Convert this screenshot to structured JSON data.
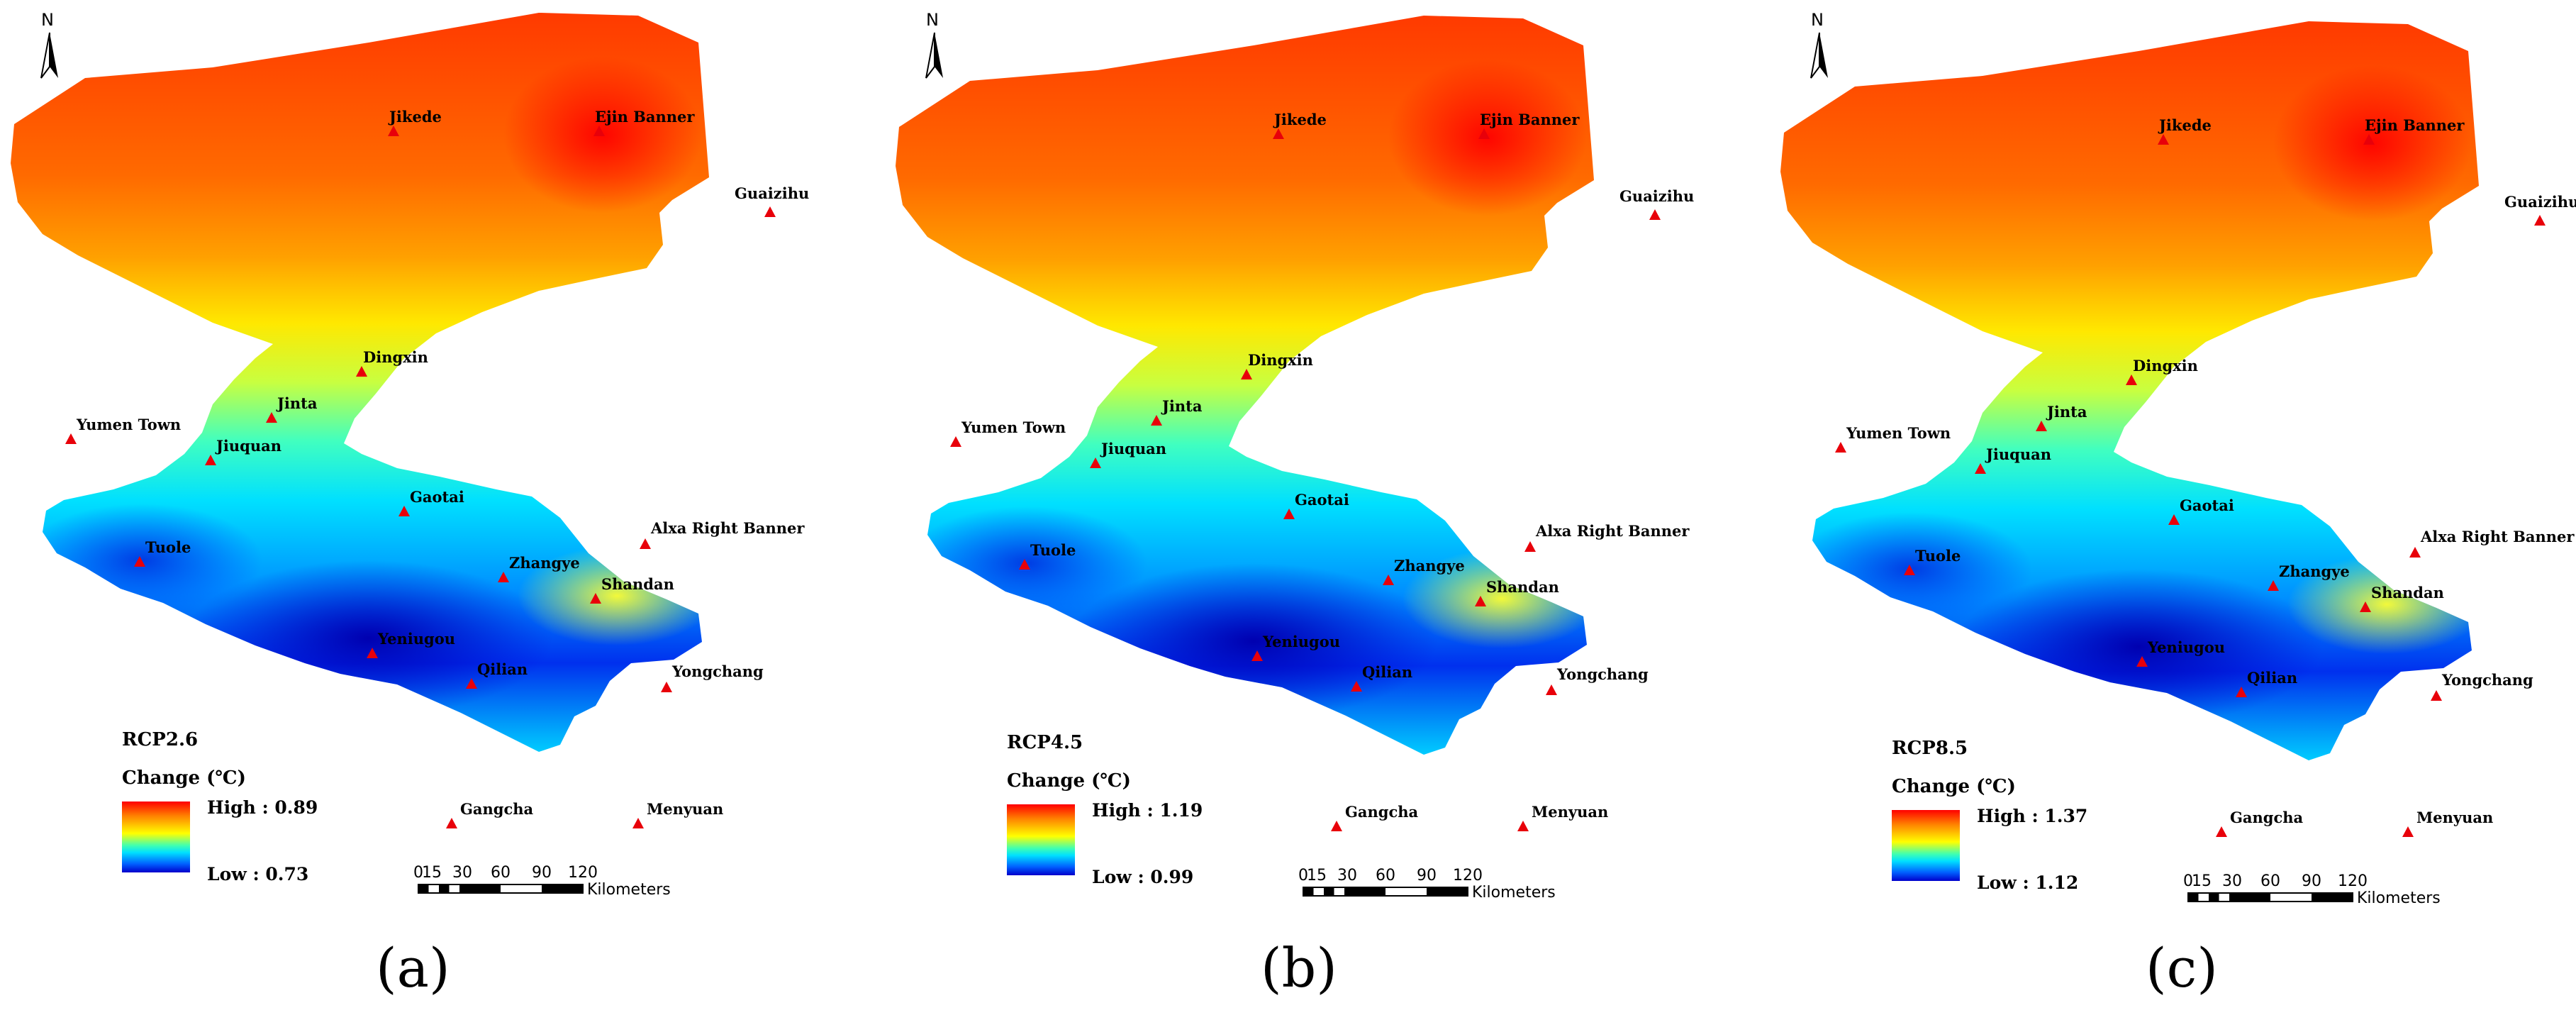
{
  "north_label": "N",
  "colors": {
    "high": "#ff0000",
    "mid": "#ffff00",
    "cyan": "#00e8ff",
    "low": "#0000cc",
    "marker": "#e8000a"
  },
  "legend_title": "Change (℃)",
  "scale": {
    "ticks": [
      "0",
      "15",
      "30",
      "60",
      "90",
      "120"
    ],
    "unit": "Kilometers"
  },
  "stations": [
    {
      "name": "Jikede"
    },
    {
      "name": "Ejin Banner"
    },
    {
      "name": "Guaizihu"
    },
    {
      "name": "Dingxin"
    },
    {
      "name": "Jinta"
    },
    {
      "name": "Yumen Town"
    },
    {
      "name": "Jiuquan"
    },
    {
      "name": "Gaotai"
    },
    {
      "name": "Alxa Right Banner"
    },
    {
      "name": "Tuole"
    },
    {
      "name": "Zhangye"
    },
    {
      "name": "Shandan"
    },
    {
      "name": "Yeniugou"
    },
    {
      "name": "Qilian"
    },
    {
      "name": "Yongchang"
    },
    {
      "name": "Gangcha"
    },
    {
      "name": "Menyuan"
    }
  ],
  "panels": [
    {
      "scenario": "RCP2.6",
      "high": "High : 0.89",
      "low": "Low : 0.73",
      "caption": "(a)"
    },
    {
      "scenario": "RCP4.5",
      "high": "High : 1.19",
      "low": "Low : 0.99",
      "caption": "(b)"
    },
    {
      "scenario": "RCP8.5",
      "high": "High : 1.37",
      "low": "Low : 1.12",
      "caption": "(c)"
    }
  ]
}
